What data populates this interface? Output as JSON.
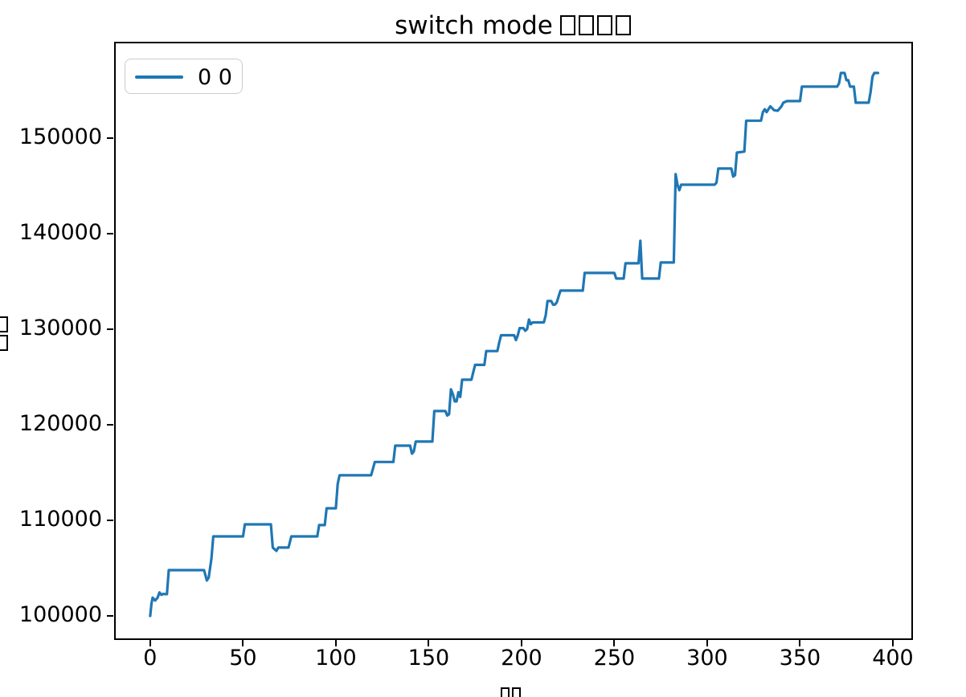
{
  "figure": {
    "title_text": "switch mode",
    "title_missing_glyph_count": 4,
    "xlabel_missing_glyph_count": 2,
    "ylabel_missing_glyph_count": 2
  },
  "chart_data": {
    "type": "line",
    "title": "switch mode □□□□",
    "subtitle": "",
    "xlabel": "□□",
    "ylabel": "□□",
    "grid": false,
    "legend_position": "upper left",
    "legend_entries": [
      {
        "label": "0 0",
        "color": "#1f77b4"
      }
    ],
    "xticks": [
      0,
      50,
      100,
      150,
      200,
      250,
      300,
      350,
      400
    ],
    "yticks": [
      100000,
      110000,
      120000,
      130000,
      140000,
      150000
    ],
    "xlim": [
      -19.0,
      410.4
    ],
    "ylim": [
      97560,
      159970
    ],
    "series": [
      {
        "name": "0 0",
        "color": "#1f77b4",
        "points": [
          [
            0,
            100000
          ],
          [
            0.7,
            101300
          ],
          [
            1.3,
            101900
          ],
          [
            2.6,
            101600
          ],
          [
            4,
            101900
          ],
          [
            5,
            102450
          ],
          [
            6,
            102200
          ],
          [
            7,
            102300
          ],
          [
            8,
            102270
          ],
          [
            9,
            102270
          ],
          [
            10,
            104780
          ],
          [
            29,
            104780
          ],
          [
            30.5,
            103700
          ],
          [
            31.5,
            104000
          ],
          [
            33,
            106000
          ],
          [
            34,
            108315
          ],
          [
            50,
            108315
          ],
          [
            51,
            109575
          ],
          [
            65,
            109575
          ],
          [
            66,
            107140
          ],
          [
            68,
            106800
          ],
          [
            69,
            107140
          ],
          [
            74.5,
            107140
          ],
          [
            76,
            108315
          ],
          [
            90,
            108315
          ],
          [
            91,
            109500
          ],
          [
            94,
            109500
          ],
          [
            95,
            111250
          ],
          [
            100,
            111250
          ],
          [
            101,
            113800
          ],
          [
            102,
            114700
          ],
          [
            119,
            114700
          ],
          [
            120,
            115400
          ],
          [
            121,
            116100
          ],
          [
            131,
            116100
          ],
          [
            132,
            117800
          ],
          [
            140,
            117800
          ],
          [
            141,
            116970
          ],
          [
            142,
            117200
          ],
          [
            143,
            118230
          ],
          [
            152,
            118230
          ],
          [
            153,
            121420
          ],
          [
            159,
            121420
          ],
          [
            160,
            120950
          ],
          [
            161,
            121100
          ],
          [
            162,
            123690
          ],
          [
            163,
            123200
          ],
          [
            164,
            122430
          ],
          [
            165,
            122430
          ],
          [
            166,
            123400
          ],
          [
            167,
            122900
          ],
          [
            168,
            124700
          ],
          [
            173,
            124700
          ],
          [
            174,
            125500
          ],
          [
            175,
            126250
          ],
          [
            180,
            126250
          ],
          [
            181,
            127700
          ],
          [
            187,
            127700
          ],
          [
            188,
            128600
          ],
          [
            189,
            129350
          ],
          [
            196,
            129350
          ],
          [
            197,
            128850
          ],
          [
            198,
            129350
          ],
          [
            199,
            130100
          ],
          [
            201,
            130100
          ],
          [
            202,
            129820
          ],
          [
            203,
            130000
          ],
          [
            204,
            131000
          ],
          [
            205,
            130500
          ],
          [
            206,
            130700
          ],
          [
            212,
            130700
          ],
          [
            213,
            131420
          ],
          [
            214,
            132930
          ],
          [
            216,
            132930
          ],
          [
            217,
            132550
          ],
          [
            218,
            132550
          ],
          [
            219,
            132800
          ],
          [
            221,
            134020
          ],
          [
            233,
            134020
          ],
          [
            234,
            135870
          ],
          [
            250,
            135870
          ],
          [
            251,
            135280
          ],
          [
            255,
            135280
          ],
          [
            256,
            136880
          ],
          [
            263,
            136880
          ],
          [
            264,
            139230
          ],
          [
            265,
            135280
          ],
          [
            274,
            135280
          ],
          [
            275,
            136960
          ],
          [
            282,
            136960
          ],
          [
            283,
            146200
          ],
          [
            284,
            145100
          ],
          [
            285,
            144520
          ],
          [
            286,
            145100
          ],
          [
            304,
            145100
          ],
          [
            305,
            145300
          ],
          [
            306,
            146790
          ],
          [
            313,
            146790
          ],
          [
            314,
            145950
          ],
          [
            315,
            146100
          ],
          [
            316,
            148460
          ],
          [
            320,
            148560
          ],
          [
            321,
            151800
          ],
          [
            329,
            151800
          ],
          [
            330,
            152700
          ],
          [
            331,
            153000
          ],
          [
            332,
            152700
          ],
          [
            334,
            153300
          ],
          [
            336,
            152900
          ],
          [
            338,
            152840
          ],
          [
            340,
            153300
          ],
          [
            341,
            153680
          ],
          [
            343,
            153850
          ],
          [
            350,
            153850
          ],
          [
            351,
            155360
          ],
          [
            370,
            155360
          ],
          [
            371,
            155700
          ],
          [
            372,
            156790
          ],
          [
            374,
            156790
          ],
          [
            375,
            156030
          ],
          [
            376,
            156030
          ],
          [
            377,
            155360
          ],
          [
            379,
            155360
          ],
          [
            380,
            153680
          ],
          [
            387,
            153680
          ],
          [
            388,
            154800
          ],
          [
            389,
            156400
          ],
          [
            390,
            156790
          ],
          [
            392,
            156790
          ]
        ]
      }
    ]
  }
}
